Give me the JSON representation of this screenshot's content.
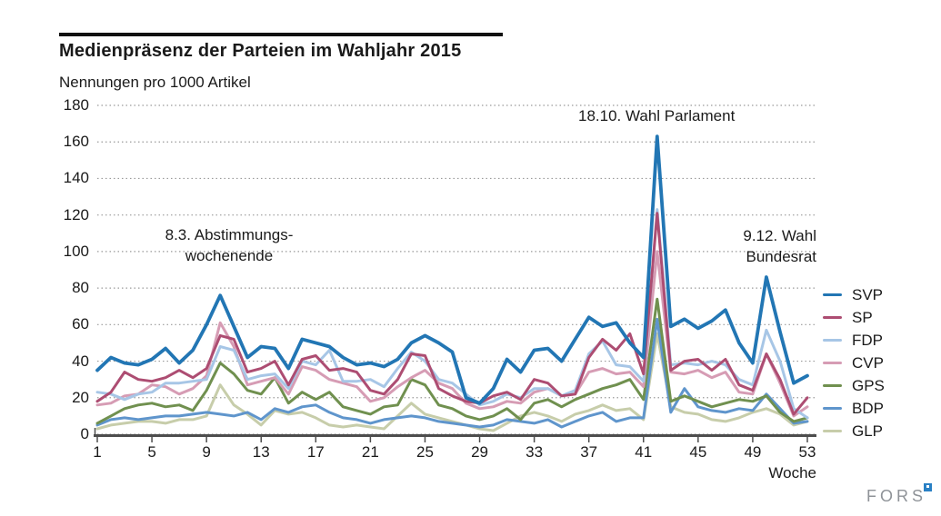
{
  "header": {
    "title": "Medienpräsenz der Parteien im Wahljahr 2015",
    "subtitle": "Nennungen pro 1000 Artikel"
  },
  "chart_data": {
    "type": "line",
    "xlabel": "Woche",
    "ylabel": "Nennungen pro 1000 Artikel",
    "ylim": [
      0,
      180
    ],
    "ytick_step": 20,
    "xticks": [
      1,
      5,
      9,
      13,
      17,
      21,
      25,
      29,
      33,
      37,
      41,
      45,
      49,
      53
    ],
    "x_range_weeks": [
      1,
      53
    ],
    "grid": "dotted horizontal",
    "legend_position": "right",
    "series": [
      {
        "name": "SVP",
        "color": "#2276b4",
        "width": 3.8,
        "values": [
          35,
          42,
          39,
          38,
          41,
          47,
          39,
          46,
          60,
          76,
          59,
          42,
          48,
          47,
          36,
          52,
          50,
          48,
          42,
          38,
          39,
          37,
          41,
          50,
          54,
          50,
          45,
          20,
          17,
          25,
          41,
          34,
          46,
          47,
          40,
          52,
          64,
          59,
          61,
          50,
          42,
          163,
          59,
          63,
          58,
          62,
          68,
          50,
          39,
          86,
          56,
          28,
          32
        ]
      },
      {
        "name": "SP",
        "color": "#ad4d72",
        "width": 3,
        "values": [
          18,
          23,
          34,
          30,
          29,
          31,
          35,
          31,
          36,
          54,
          52,
          34,
          36,
          40,
          27,
          41,
          43,
          35,
          36,
          34,
          24,
          22,
          30,
          44,
          43,
          25,
          21,
          18,
          17,
          21,
          23,
          19,
          30,
          28,
          21,
          22,
          42,
          52,
          46,
          55,
          33,
          121,
          35,
          40,
          41,
          35,
          41,
          27,
          24,
          44,
          30,
          11,
          20
        ]
      },
      {
        "name": "FDP",
        "color": "#a7c6e6",
        "width": 3,
        "values": [
          23,
          22,
          19,
          22,
          23,
          28,
          28,
          29,
          30,
          48,
          46,
          30,
          32,
          33,
          25,
          40,
          38,
          46,
          29,
          29,
          30,
          26,
          36,
          45,
          40,
          30,
          28,
          22,
          16,
          18,
          22,
          20,
          25,
          25,
          21,
          24,
          44,
          51,
          38,
          37,
          29,
          123,
          38,
          39,
          38,
          40,
          38,
          30,
          27,
          57,
          40,
          14,
          9
        ]
      },
      {
        "name": "CVP",
        "color": "#d69cb4",
        "width": 3,
        "values": [
          16,
          17,
          21,
          22,
          27,
          26,
          22,
          25,
          32,
          61,
          48,
          27,
          29,
          31,
          22,
          37,
          35,
          30,
          28,
          26,
          18,
          20,
          26,
          31,
          35,
          28,
          25,
          17,
          14,
          15,
          18,
          17,
          23,
          25,
          21,
          22,
          34,
          36,
          33,
          34,
          26,
          100,
          34,
          33,
          35,
          31,
          34,
          23,
          22,
          44,
          28,
          10,
          15
        ]
      },
      {
        "name": "GPS",
        "color": "#70904f",
        "width": 3,
        "values": [
          6,
          10,
          14,
          16,
          17,
          15,
          16,
          13,
          24,
          39,
          33,
          24,
          22,
          31,
          17,
          23,
          19,
          23,
          15,
          13,
          11,
          15,
          16,
          30,
          27,
          16,
          14,
          10,
          8,
          10,
          14,
          8,
          17,
          19,
          15,
          19,
          22,
          25,
          27,
          30,
          19,
          74,
          18,
          21,
          18,
          15,
          17,
          19,
          18,
          21,
          12,
          7,
          9
        ]
      },
      {
        "name": "BDP",
        "color": "#5f95cc",
        "width": 3,
        "values": [
          5,
          8,
          9,
          8,
          9,
          10,
          10,
          11,
          12,
          11,
          10,
          12,
          8,
          14,
          12,
          15,
          16,
          12,
          9,
          8,
          6,
          8,
          9,
          10,
          9,
          7,
          6,
          5,
          4,
          5,
          8,
          7,
          6,
          8,
          4,
          7,
          10,
          12,
          7,
          9,
          9,
          63,
          12,
          25,
          15,
          13,
          12,
          14,
          13,
          22,
          14,
          6,
          7
        ]
      },
      {
        "name": "GLP",
        "color": "#c7cdaa",
        "width": 3,
        "values": [
          3,
          5,
          6,
          7,
          7,
          6,
          8,
          8,
          10,
          27,
          16,
          11,
          5,
          13,
          11,
          12,
          9,
          5,
          4,
          5,
          4,
          3,
          10,
          17,
          11,
          9,
          7,
          5,
          3,
          2,
          6,
          10,
          12,
          10,
          7,
          11,
          13,
          16,
          13,
          14,
          8,
          55,
          15,
          12,
          11,
          8,
          7,
          9,
          12,
          14,
          11,
          5,
          7
        ]
      }
    ],
    "annotations": [
      {
        "lines": [
          "8.3. Abstimmungs-",
          "wochenende"
        ]
      },
      {
        "lines": [
          "18.10. Wahl Parlament"
        ]
      },
      {
        "lines": [
          "9.12. Wahl",
          "Bundesrat"
        ]
      }
    ]
  },
  "footer": {
    "logo_text": "FORS"
  }
}
